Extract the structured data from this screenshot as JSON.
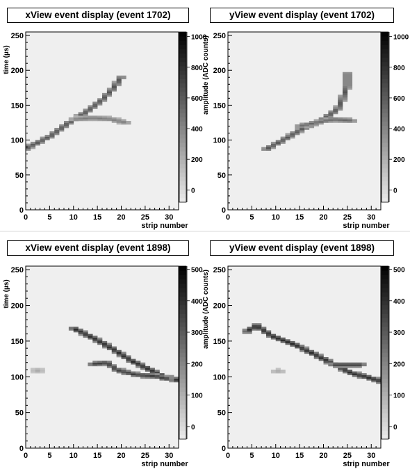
{
  "chart_data": [
    {
      "type": "heatmap",
      "title": "xView event display (event 1702)",
      "xlabel": "strip number",
      "ylabel": "time (µs)",
      "zlabel": "amplitude (ADC counts)",
      "xlim": [
        0,
        32
      ],
      "ylim": [
        0,
        255
      ],
      "zlim": [
        -80,
        1030
      ],
      "x_ticks": [
        "0",
        "5",
        "10",
        "15",
        "20",
        "25",
        "30"
      ],
      "y_ticks": [
        "0",
        "50",
        "100",
        "150",
        "200",
        "250"
      ],
      "z_ticks": [
        "0",
        "200",
        "400",
        "600",
        "800",
        "1000"
      ],
      "colormap": "grayscale (white = low, black = high)",
      "tracks": [
        {
          "points": [
            [
              0,
              88
            ],
            [
              5,
              105
            ],
            [
              9,
              125
            ],
            [
              13,
              142
            ],
            [
              16,
              158
            ],
            [
              18,
              172
            ],
            [
              20,
              190
            ]
          ],
          "amplitude": 650
        },
        {
          "points": [
            [
              10,
              130
            ],
            [
              14,
              132
            ],
            [
              18,
              130
            ],
            [
              21,
              125
            ]
          ],
          "amplitude": 450
        }
      ]
    },
    {
      "type": "heatmap",
      "title": "yView event display (event 1702)",
      "xlabel": "strip number",
      "ylabel": "",
      "zlabel": "",
      "xlim": [
        0,
        32
      ],
      "ylim": [
        0,
        255
      ],
      "zlim": [
        -80,
        1030
      ],
      "x_ticks": [
        "0",
        "5",
        "10",
        "15",
        "20",
        "25",
        "30"
      ],
      "y_ticks": [
        "0",
        "50",
        "100",
        "150",
        "200",
        "250"
      ],
      "z_ticks": [
        "0",
        "200",
        "400",
        "600",
        "800",
        "1000"
      ],
      "colormap": "grayscale (white = low, black = high)",
      "tracks": [
        {
          "points": [
            [
              8,
              87
            ],
            [
              12,
              102
            ],
            [
              16,
              118
            ],
            [
              20,
              130
            ],
            [
              23,
              145
            ],
            [
              24,
              160
            ],
            [
              25,
              178
            ],
            [
              25,
              195
            ]
          ],
          "amplitude": 650
        },
        {
          "points": [
            [
              15,
              120
            ],
            [
              19,
              126
            ],
            [
              22,
              130
            ],
            [
              26,
              128
            ]
          ],
          "amplitude": 550
        }
      ]
    },
    {
      "type": "heatmap",
      "title": "xView event display (event 1898)",
      "xlabel": "strip number",
      "ylabel": "time (µs)",
      "zlabel": "amplitude (ADC counts)",
      "xlim": [
        0,
        32
      ],
      "ylim": [
        0,
        255
      ],
      "zlim": [
        -40,
        510
      ],
      "x_ticks": [
        "0",
        "5",
        "10",
        "15",
        "20",
        "25",
        "30"
      ],
      "y_ticks": [
        "0",
        "50",
        "100",
        "150",
        "200",
        "250"
      ],
      "z_ticks": [
        "0",
        "100",
        "200",
        "300",
        "400",
        "500"
      ],
      "colormap": "grayscale (white = low, black = high)",
      "tracks": [
        {
          "points": [
            [
              10,
              168
            ],
            [
              14,
              155
            ],
            [
              18,
              140
            ],
            [
              22,
              123
            ],
            [
              26,
              110
            ],
            [
              29,
              100
            ],
            [
              32,
              95
            ]
          ],
          "amplitude": 420
        },
        {
          "points": [
            [
              14,
              118
            ],
            [
              17,
              120
            ],
            [
              19,
              110
            ],
            [
              23,
              103
            ],
            [
              27,
              101
            ],
            [
              30,
              97
            ]
          ],
          "amplitude": 380
        },
        {
          "points": [
            [
              2,
              109
            ],
            [
              3,
              109
            ]
          ],
          "amplitude": 120
        }
      ]
    },
    {
      "type": "heatmap",
      "title": "yView event display (event 1898)",
      "xlabel": "strip number",
      "ylabel": "",
      "zlabel": "",
      "xlim": [
        0,
        32
      ],
      "ylim": [
        0,
        255
      ],
      "zlim": [
        -40,
        510
      ],
      "x_ticks": [
        "0",
        "5",
        "10",
        "15",
        "20",
        "25",
        "30"
      ],
      "y_ticks": [
        "0",
        "50",
        "100",
        "150",
        "200",
        "250"
      ],
      "z_ticks": [
        "0",
        "100",
        "200",
        "300",
        "400",
        "500"
      ],
      "colormap": "grayscale (white = low, black = high)",
      "tracks": [
        {
          "points": [
            [
              4,
              164
            ],
            [
              6,
              172
            ],
            [
              9,
              158
            ],
            [
              14,
              145
            ],
            [
              18,
              132
            ],
            [
              22,
              118
            ],
            [
              26,
              105
            ],
            [
              30,
              98
            ],
            [
              32,
              94
            ]
          ],
          "amplitude": 420
        },
        {
          "points": [
            [
              22,
              117
            ],
            [
              25,
              117
            ],
            [
              28,
              117
            ]
          ],
          "amplitude": 380
        },
        {
          "points": [
            [
              10,
              108
            ],
            [
              11,
              108
            ]
          ],
          "amplitude": 120
        }
      ]
    }
  ]
}
